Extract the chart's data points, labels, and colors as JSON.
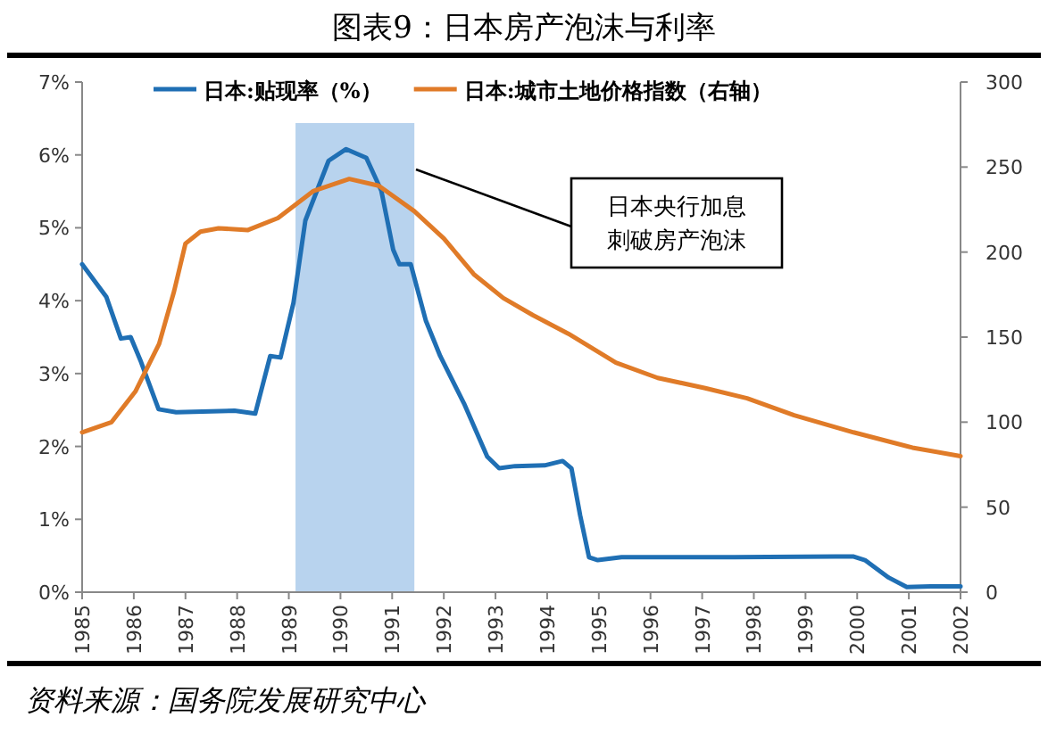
{
  "chart_data": {
    "type": "line",
    "title": "图表9：日本房产泡沫与利率",
    "x": [
      1985.0,
      1985.47,
      1985.75,
      1985.94,
      1986.14,
      1986.48,
      1986.82,
      1987.95,
      1988.35,
      1988.64,
      1988.84,
      1989.09,
      1989.32,
      1989.77,
      1990.11,
      1990.5,
      1990.79,
      1991.02,
      1991.14,
      1991.36,
      1991.65,
      1991.93,
      1992.39,
      1992.84,
      1993.07,
      1993.38,
      1993.95,
      1994.3,
      1994.47,
      1994.64,
      1994.81,
      1994.98,
      1995.44,
      1997.62,
      1999.58,
      1999.92,
      2000.15,
      2000.61,
      2000.96,
      2001.42,
      2002.0
    ],
    "series": [
      {
        "name": "日本:贴现率（%）",
        "color": "#1f6fb4",
        "values": [
          4.5,
          4.05,
          3.48,
          3.5,
          3.16,
          2.51,
          2.47,
          2.49,
          2.45,
          3.24,
          3.22,
          3.97,
          5.1,
          5.92,
          6.08,
          5.96,
          5.51,
          4.7,
          4.5,
          4.5,
          3.73,
          3.24,
          2.59,
          1.86,
          1.7,
          1.73,
          1.74,
          1.8,
          1.7,
          1.05,
          0.48,
          0.44,
          0.48,
          0.48,
          0.49,
          0.49,
          0.44,
          0.2,
          0.07,
          0.08,
          0.08
        ]
      },
      {
        "name": "日本:城市土地价格指数（右轴）",
        "color": "#e07b28",
        "axis": "y2",
        "x": [
          1985.0,
          1985.57,
          1986.03,
          1986.49,
          1986.78,
          1987.0,
          1987.29,
          1987.64,
          1988.21,
          1988.79,
          1989.48,
          1990.17,
          1990.74,
          1991.43,
          1992.0,
          1992.58,
          1993.15,
          1993.72,
          1994.41,
          1995.33,
          1996.14,
          1997.06,
          1997.87,
          1998.78,
          1999.93,
          2001.07,
          2002.0
        ],
        "values": [
          94,
          100,
          118,
          146,
          177,
          205,
          212,
          214,
          213,
          220,
          236,
          243,
          239,
          224,
          208,
          187,
          173,
          163,
          152,
          135,
          126,
          120,
          114,
          104,
          94,
          85,
          80
        ]
      }
    ],
    "xlim": [
      1985,
      2002
    ],
    "xticks": [
      1985,
      1986,
      1987,
      1988,
      1989,
      1990,
      1991,
      1992,
      1993,
      1994,
      1995,
      1996,
      1997,
      1998,
      1999,
      2000,
      2001,
      2002
    ],
    "ylim": [
      0,
      7
    ],
    "yticks": [
      {
        "value": 0,
        "label": "0%"
      },
      {
        "value": 1,
        "label": "1%"
      },
      {
        "value": 2,
        "label": "2%"
      },
      {
        "value": 3,
        "label": "3%"
      },
      {
        "value": 4,
        "label": "4%"
      },
      {
        "value": 5,
        "label": "5%"
      },
      {
        "value": 6,
        "label": "6%"
      },
      {
        "value": 7,
        "label": "7%"
      }
    ],
    "y2lim": [
      0,
      300
    ],
    "y2ticks": [
      0,
      50,
      100,
      150,
      200,
      250,
      300
    ],
    "bands": [
      {
        "axis": "x",
        "from": 1989.13,
        "to": 1991.43,
        "color": "#b8d3ee"
      }
    ],
    "annotations": [
      "日本央行加息刺破房产泡沫",
      "资料来源：国务院发展研究中心"
    ],
    "legend": "top",
    "grid": false,
    "marker": "none",
    "line_style": "solid"
  }
}
